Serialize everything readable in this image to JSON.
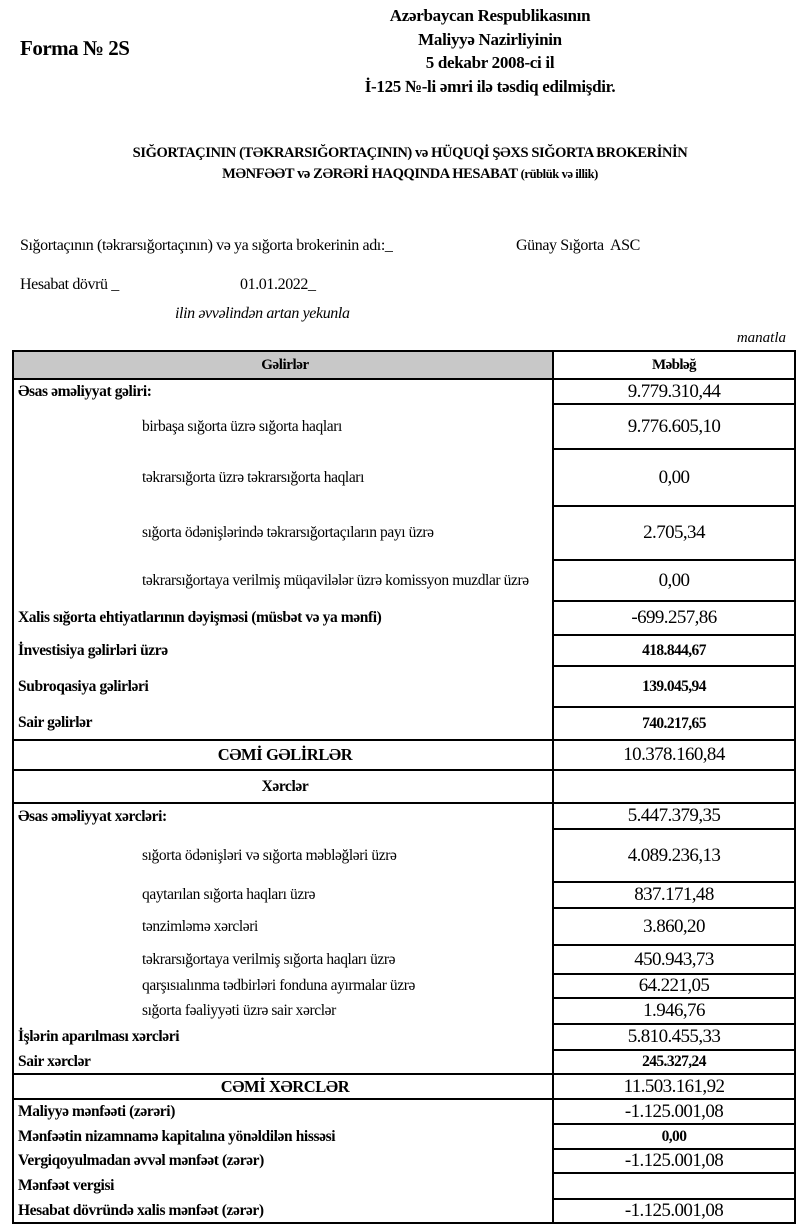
{
  "form_number": "Forma № 2S",
  "approval": [
    "Azərbaycan Respublikasının",
    "Maliyyə Nazirliyinin",
    "5 dekabr 2008-ci il",
    "İ-125 №-li əmri ilə təsdiq edilmişdir."
  ],
  "title": {
    "line1": "SIĞORTAÇININ (TƏKRARSIĞORTAÇININ) və HÜQUQİ ŞƏXS SIĞORTA BROKERİNİN",
    "line2": "MƏNFƏƏT və ZƏRƏRİ HAQQINDA HESABAT",
    "line2_note": "(rüblük və illik)"
  },
  "company": {
    "label": "Sığortaçının (təkrarsığortaçının) və ya sığorta brokerinin adı:_",
    "name": "Günay Sığorta  ASC"
  },
  "period": {
    "label": "Hesabat dövrü _",
    "value": "01.01.2022_",
    "note": "ilin əvvəlindən artan yekunla"
  },
  "currency": "manatla",
  "table": {
    "headers": [
      "Gəlirlər",
      "Məbləğ"
    ],
    "rows": [
      {
        "type": "section",
        "label": "Əsas əməliyyat gəliri:",
        "value": "9.779.310,44"
      },
      {
        "type": "sub",
        "label": "birbaşa sığorta üzrə sığorta haqları",
        "value": "9.776.605,10"
      },
      {
        "type": "sub",
        "label": "təkrarsığorta üzrə təkrarsığorta haqları",
        "value": "0,00"
      },
      {
        "type": "sub",
        "label": "sığorta ödənişlərində təkrarsığortaçıların payı üzrə",
        "value": "2.705,34"
      },
      {
        "type": "sub",
        "label": "təkrarsığortaya verilmiş müqavilələr üzrə komissyon muzdlar üzrə",
        "value": "0,00"
      },
      {
        "type": "section",
        "label": "Xalis sığorta ehtiyatlarının dəyişməsi (müsbət və ya mənfi)",
        "value": "-699.257,86"
      },
      {
        "type": "section",
        "label": "İnvestisiya gəlirləri üzrə",
        "value": "418.844,67",
        "bold_value": true
      },
      {
        "type": "section",
        "label": "Subroqasiya gəlirləri",
        "value": "139.045,94",
        "bold_value": true
      },
      {
        "type": "section",
        "label": "Sair gəlirlər",
        "value": "740.217,65",
        "bold_value": true
      },
      {
        "type": "total",
        "label": "CƏMİ  GƏLİRLƏR",
        "value": "10.378.160,84"
      },
      {
        "type": "cat",
        "label": "Xərclər",
        "value": ""
      },
      {
        "type": "section",
        "label": "Əsas əməliyyat xərcləri:",
        "value": "5.447.379,35"
      },
      {
        "type": "sub",
        "label": "sığorta ödənişləri və sığorta məbləğləri üzrə",
        "value": "4.089.236,13"
      },
      {
        "type": "sub",
        "label": "qaytarılan sığorta haqları üzrə",
        "value": "837.171,48"
      },
      {
        "type": "sub",
        "label": "tənzimləmə xərcləri",
        "value": "3.860,20"
      },
      {
        "type": "sub",
        "label": "təkrarsığortaya verilmiş sığorta haqları üzrə",
        "value": "450.943,73"
      },
      {
        "type": "sub",
        "label": "qarşısıalınma tədbirləri fonduna ayırmalar üzrə",
        "value": "64.221,05"
      },
      {
        "type": "sub",
        "label": "sığorta fəaliyyəti üzrə sair xərclər",
        "value": "1.946,76"
      },
      {
        "type": "section",
        "label": "İşlərin aparılması xərcləri",
        "value": "5.810.455,33"
      },
      {
        "type": "section",
        "label": "Sair xərclər",
        "value": "245.327,24",
        "bold_value": true
      },
      {
        "type": "total",
        "label": "CƏMİ  XƏRCLƏR",
        "value": "11.503.161,92"
      },
      {
        "type": "section",
        "label": "Maliyyə mənfəəti (zərəri)",
        "value": "-1.125.001,08"
      },
      {
        "type": "section",
        "label": "Mənfəətin nizamnamə kapitalına yönəldilən hissəsi",
        "value": "0,00",
        "bold_value": true
      },
      {
        "type": "section",
        "label": "Vergiqoyulmadan əvvəl mənfəət (zərər)",
        "value": "-1.125.001,08"
      },
      {
        "type": "section",
        "label": "Mənfəət vergisi",
        "value": ""
      },
      {
        "type": "section",
        "label": "Hesabat dövründə xalis mənfəət (zərər)",
        "value": "-1.125.001,08"
      }
    ]
  }
}
